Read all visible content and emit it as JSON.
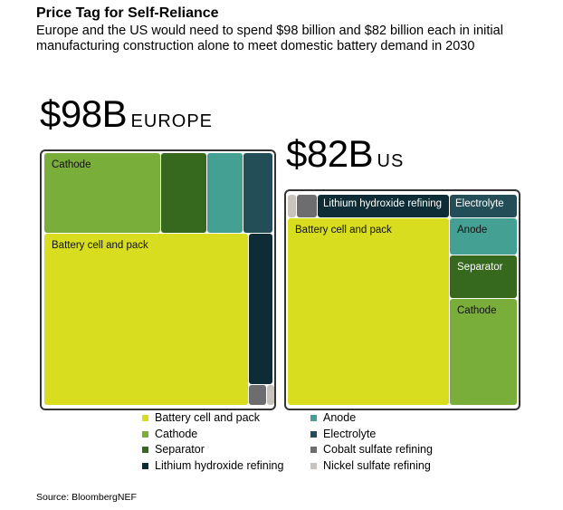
{
  "title": "Price Tag for Self-Reliance",
  "subtitle": "Europe and the US would need to spend $98 billion and $82 billion each in initial manufacturing construction alone to meet domestic battery demand in 2030",
  "source": "Source: BloombergNEF",
  "colors": {
    "Battery cell and pack": "#d8dd1f",
    "Cathode": "#7aae3a",
    "Separator": "#36691d",
    "Anode": "#44a093",
    "Electrolyte": "#234e57",
    "Lithium hydroxide refining": "#0e2c35",
    "Cobalt sulfate refining": "#6d6d6f",
    "Nickel sulfate refining": "#c8c3bc"
  },
  "chart_data": {
    "type": "treemap",
    "title": "Price Tag for Self-Reliance",
    "unit": "USD billion",
    "groups": [
      {
        "name": "EUROPE",
        "total_label": "$98B",
        "total": 98,
        "cells": [
          "Cathode",
          "Separator",
          "Anode",
          "Electrolyte",
          "Battery cell and pack",
          "Lithium hydroxide refining",
          "Cobalt sulfate refining",
          "Nickel sulfate refining"
        ],
        "labels": {
          "Cathode": "Cathode",
          "Battery cell and pack": "Battery cell and pack"
        }
      },
      {
        "name": "US",
        "total_label": "$82B",
        "total": 82,
        "cells": [
          "Nickel sulfate refining",
          "Cobalt sulfate refining",
          "Lithium hydroxide refining",
          "Electrolyte",
          "Battery cell and pack",
          "Anode",
          "Separator",
          "Cathode"
        ],
        "labels": {
          "Lithium hydroxide refining": "Lithium hydroxide refining",
          "Electrolyte": "Electrolyte",
          "Battery cell and pack": "Battery cell and pack",
          "Anode": "Anode",
          "Separator": "Separator",
          "Cathode": "Cathode"
        }
      }
    ],
    "legend": [
      "Battery cell and pack",
      "Cathode",
      "Separator",
      "Lithium hydroxide refining",
      "Anode",
      "Electrolyte",
      "Cobalt sulfate refining",
      "Nickel sulfate refining"
    ],
    "legend_placement": "bottom"
  }
}
